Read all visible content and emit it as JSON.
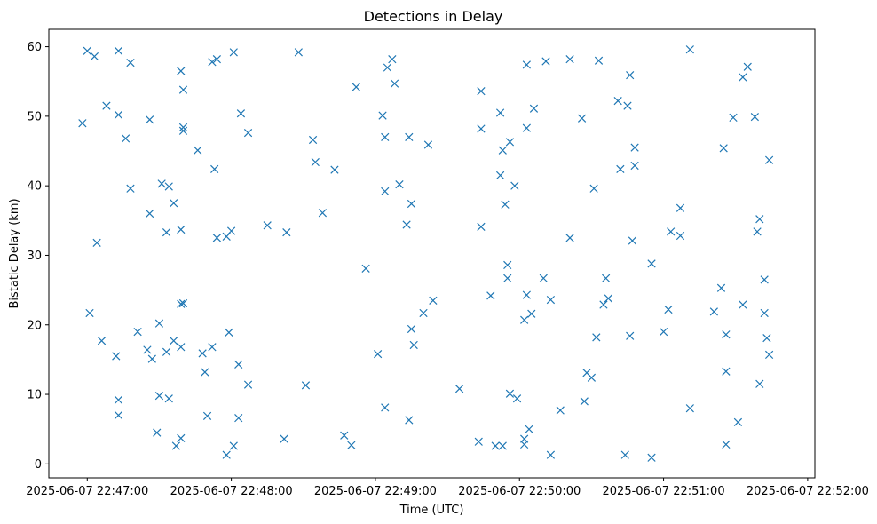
{
  "chart_data": {
    "type": "scatter",
    "title": "Detections in Delay",
    "xlabel": "Time (UTC)",
    "ylabel": "Bistatic Delay (km)",
    "marker": "x",
    "color": "#1f77b4",
    "grid": false,
    "xlim": [
      "2025-06-07 22:46:44",
      "2025-06-07 22:52:03"
    ],
    "ylim": [
      -2,
      62.5
    ],
    "x_ticks": [
      "2025-06-07 22:47:00",
      "2025-06-07 22:48:00",
      "2025-06-07 22:49:00",
      "2025-06-07 22:50:00",
      "2025-06-07 22:51:00",
      "2025-06-07 22:52:00"
    ],
    "y_ticks": [
      0,
      10,
      20,
      30,
      40,
      50,
      60
    ],
    "points": [
      [
        "2025-06-07 22:46:58",
        49.0
      ],
      [
        "2025-06-07 22:47:00",
        59.4
      ],
      [
        "2025-06-07 22:47:01",
        21.7
      ],
      [
        "2025-06-07 22:47:03",
        58.6
      ],
      [
        "2025-06-07 22:47:04",
        31.8
      ],
      [
        "2025-06-07 22:47:06",
        17.7
      ],
      [
        "2025-06-07 22:47:08",
        51.5
      ],
      [
        "2025-06-07 22:47:12",
        15.5
      ],
      [
        "2025-06-07 22:47:13",
        59.4
      ],
      [
        "2025-06-07 22:47:13",
        50.2
      ],
      [
        "2025-06-07 22:47:13",
        9.2
      ],
      [
        "2025-06-07 22:47:13",
        7.0
      ],
      [
        "2025-06-07 22:47:16",
        46.8
      ],
      [
        "2025-06-07 22:47:18",
        57.7
      ],
      [
        "2025-06-07 22:47:18",
        39.6
      ],
      [
        "2025-06-07 22:47:21",
        19.0
      ],
      [
        "2025-06-07 22:47:25",
        16.4
      ],
      [
        "2025-06-07 22:47:26",
        49.5
      ],
      [
        "2025-06-07 22:47:26",
        36.0
      ],
      [
        "2025-06-07 22:47:27",
        15.1
      ],
      [
        "2025-06-07 22:47:29",
        4.5
      ],
      [
        "2025-06-07 22:47:30",
        20.2
      ],
      [
        "2025-06-07 22:47:30",
        9.8
      ],
      [
        "2025-06-07 22:47:31",
        40.3
      ],
      [
        "2025-06-07 22:47:33",
        33.3
      ],
      [
        "2025-06-07 22:47:33",
        16.1
      ],
      [
        "2025-06-07 22:47:34",
        39.9
      ],
      [
        "2025-06-07 22:47:34",
        9.4
      ],
      [
        "2025-06-07 22:47:36",
        37.5
      ],
      [
        "2025-06-07 22:47:36",
        17.7
      ],
      [
        "2025-06-07 22:47:37",
        2.6
      ],
      [
        "2025-06-07 22:47:39",
        56.5
      ],
      [
        "2025-06-07 22:47:39",
        33.7
      ],
      [
        "2025-06-07 22:47:39",
        23.0
      ],
      [
        "2025-06-07 22:47:39",
        16.8
      ],
      [
        "2025-06-07 22:47:39",
        3.7
      ],
      [
        "2025-06-07 22:47:40",
        53.8
      ],
      [
        "2025-06-07 22:47:40",
        48.4
      ],
      [
        "2025-06-07 22:47:40",
        47.9
      ],
      [
        "2025-06-07 22:47:40",
        23.1
      ],
      [
        "2025-06-07 22:47:46",
        45.1
      ],
      [
        "2025-06-07 22:47:48",
        15.9
      ],
      [
        "2025-06-07 22:47:49",
        13.2
      ],
      [
        "2025-06-07 22:47:50",
        6.9
      ],
      [
        "2025-06-07 22:47:52",
        57.8
      ],
      [
        "2025-06-07 22:47:52",
        16.8
      ],
      [
        "2025-06-07 22:47:53",
        42.4
      ],
      [
        "2025-06-07 22:47:54",
        58.2
      ],
      [
        "2025-06-07 22:47:54",
        32.5
      ],
      [
        "2025-06-07 22:47:58",
        32.7
      ],
      [
        "2025-06-07 22:47:58",
        1.3
      ],
      [
        "2025-06-07 22:47:59",
        18.9
      ],
      [
        "2025-06-07 22:48:00",
        33.5
      ],
      [
        "2025-06-07 22:48:01",
        59.2
      ],
      [
        "2025-06-07 22:48:01",
        2.6
      ],
      [
        "2025-06-07 22:48:03",
        14.3
      ],
      [
        "2025-06-07 22:48:03",
        6.6
      ],
      [
        "2025-06-07 22:48:04",
        50.4
      ],
      [
        "2025-06-07 22:48:07",
        47.6
      ],
      [
        "2025-06-07 22:48:07",
        11.4
      ],
      [
        "2025-06-07 22:48:15",
        34.3
      ],
      [
        "2025-06-07 22:48:22",
        3.6
      ],
      [
        "2025-06-07 22:48:23",
        33.3
      ],
      [
        "2025-06-07 22:48:28",
        59.2
      ],
      [
        "2025-06-07 22:48:31",
        11.3
      ],
      [
        "2025-06-07 22:48:34",
        46.6
      ],
      [
        "2025-06-07 22:48:35",
        43.4
      ],
      [
        "2025-06-07 22:48:38",
        36.1
      ],
      [
        "2025-06-07 22:48:43",
        42.3
      ],
      [
        "2025-06-07 22:48:47",
        4.1
      ],
      [
        "2025-06-07 22:48:50",
        2.7
      ],
      [
        "2025-06-07 22:48:52",
        54.2
      ],
      [
        "2025-06-07 22:48:56",
        28.1
      ],
      [
        "2025-06-07 22:49:01",
        15.8
      ],
      [
        "2025-06-07 22:49:03",
        50.1
      ],
      [
        "2025-06-07 22:49:04",
        47.0
      ],
      [
        "2025-06-07 22:49:04",
        39.2
      ],
      [
        "2025-06-07 22:49:04",
        8.1
      ],
      [
        "2025-06-07 22:49:05",
        57.0
      ],
      [
        "2025-06-07 22:49:07",
        58.2
      ],
      [
        "2025-06-07 22:49:08",
        54.7
      ],
      [
        "2025-06-07 22:49:10",
        40.2
      ],
      [
        "2025-06-07 22:49:13",
        34.4
      ],
      [
        "2025-06-07 22:49:14",
        47.0
      ],
      [
        "2025-06-07 22:49:14",
        6.3
      ],
      [
        "2025-06-07 22:49:15",
        37.4
      ],
      [
        "2025-06-07 22:49:15",
        19.4
      ],
      [
        "2025-06-07 22:49:16",
        17.1
      ],
      [
        "2025-06-07 22:49:20",
        21.7
      ],
      [
        "2025-06-07 22:49:22",
        45.9
      ],
      [
        "2025-06-07 22:49:24",
        23.5
      ],
      [
        "2025-06-07 22:49:35",
        10.8
      ],
      [
        "2025-06-07 22:49:43",
        3.2
      ],
      [
        "2025-06-07 22:49:44",
        53.6
      ],
      [
        "2025-06-07 22:49:44",
        48.2
      ],
      [
        "2025-06-07 22:49:44",
        34.1
      ],
      [
        "2025-06-07 22:49:48",
        24.2
      ],
      [
        "2025-06-07 22:49:50",
        2.6
      ],
      [
        "2025-06-07 22:49:52",
        41.5
      ],
      [
        "2025-06-07 22:49:52",
        50.5
      ],
      [
        "2025-06-07 22:49:53",
        45.1
      ],
      [
        "2025-06-07 22:49:53",
        2.6
      ],
      [
        "2025-06-07 22:49:54",
        37.3
      ],
      [
        "2025-06-07 22:49:55",
        28.6
      ],
      [
        "2025-06-07 22:49:55",
        26.7
      ],
      [
        "2025-06-07 22:49:56",
        46.3
      ],
      [
        "2025-06-07 22:49:56",
        10.1
      ],
      [
        "2025-06-07 22:49:58",
        40.0
      ],
      [
        "2025-06-07 22:49:59",
        9.4
      ],
      [
        "2025-06-07 22:50:03",
        48.3
      ],
      [
        "2025-06-07 22:50:02",
        20.7
      ],
      [
        "2025-06-07 22:50:02",
        3.6
      ],
      [
        "2025-06-07 22:50:02",
        2.8
      ],
      [
        "2025-06-07 22:50:03",
        57.4
      ],
      [
        "2025-06-07 22:50:03",
        24.3
      ],
      [
        "2025-06-07 22:50:04",
        5.0
      ],
      [
        "2025-06-07 22:50:05",
        21.6
      ],
      [
        "2025-06-07 22:50:06",
        51.1
      ],
      [
        "2025-06-07 22:50:10",
        26.7
      ],
      [
        "2025-06-07 22:50:11",
        57.9
      ],
      [
        "2025-06-07 22:50:13",
        23.6
      ],
      [
        "2025-06-07 22:50:13",
        1.3
      ],
      [
        "2025-06-07 22:50:17",
        7.7
      ],
      [
        "2025-06-07 22:50:21",
        58.2
      ],
      [
        "2025-06-07 22:50:21",
        32.5
      ],
      [
        "2025-06-07 22:50:26",
        49.7
      ],
      [
        "2025-06-07 22:50:27",
        9.0
      ],
      [
        "2025-06-07 22:50:28",
        13.1
      ],
      [
        "2025-06-07 22:50:30",
        12.4
      ],
      [
        "2025-06-07 22:50:31",
        39.6
      ],
      [
        "2025-06-07 22:50:32",
        18.2
      ],
      [
        "2025-06-07 22:50:33",
        58.0
      ],
      [
        "2025-06-07 22:50:35",
        22.9
      ],
      [
        "2025-06-07 22:50:36",
        26.7
      ],
      [
        "2025-06-07 22:50:37",
        23.8
      ],
      [
        "2025-06-07 22:50:41",
        52.2
      ],
      [
        "2025-06-07 22:50:42",
        42.4
      ],
      [
        "2025-06-07 22:50:44",
        1.3
      ],
      [
        "2025-06-07 22:50:45",
        51.5
      ],
      [
        "2025-06-07 22:50:46",
        18.4
      ],
      [
        "2025-06-07 22:50:46",
        55.9
      ],
      [
        "2025-06-07 22:50:47",
        32.1
      ],
      [
        "2025-06-07 22:50:48",
        42.9
      ],
      [
        "2025-06-07 22:50:48",
        45.5
      ],
      [
        "2025-06-07 22:50:55",
        28.8
      ],
      [
        "2025-06-07 22:50:55",
        0.9
      ],
      [
        "2025-06-07 22:51:00",
        19.0
      ],
      [
        "2025-06-07 22:51:02",
        22.2
      ],
      [
        "2025-06-07 22:51:03",
        33.4
      ],
      [
        "2025-06-07 22:51:07",
        36.8
      ],
      [
        "2025-06-07 22:51:07",
        32.8
      ],
      [
        "2025-06-07 22:51:11",
        59.6
      ],
      [
        "2025-06-07 22:51:11",
        8.0
      ],
      [
        "2025-06-07 22:51:21",
        21.9
      ],
      [
        "2025-06-07 22:51:24",
        25.3
      ],
      [
        "2025-06-07 22:51:25",
        45.4
      ],
      [
        "2025-06-07 22:51:26",
        13.3
      ],
      [
        "2025-06-07 22:51:26",
        18.6
      ],
      [
        "2025-06-07 22:51:26",
        2.8
      ],
      [
        "2025-06-07 22:51:29",
        49.8
      ],
      [
        "2025-06-07 22:51:31",
        6.0
      ],
      [
        "2025-06-07 22:51:33",
        22.9
      ],
      [
        "2025-06-07 22:51:33",
        55.6
      ],
      [
        "2025-06-07 22:51:35",
        57.1
      ],
      [
        "2025-06-07 22:51:38",
        49.9
      ],
      [
        "2025-06-07 22:51:39",
        33.4
      ],
      [
        "2025-06-07 22:51:40",
        35.2
      ],
      [
        "2025-06-07 22:51:40",
        11.5
      ],
      [
        "2025-06-07 22:51:42",
        26.5
      ],
      [
        "2025-06-07 22:51:42",
        21.7
      ],
      [
        "2025-06-07 22:51:43",
        18.1
      ],
      [
        "2025-06-07 22:51:44",
        43.7
      ],
      [
        "2025-06-07 22:51:44",
        15.7
      ]
    ]
  }
}
